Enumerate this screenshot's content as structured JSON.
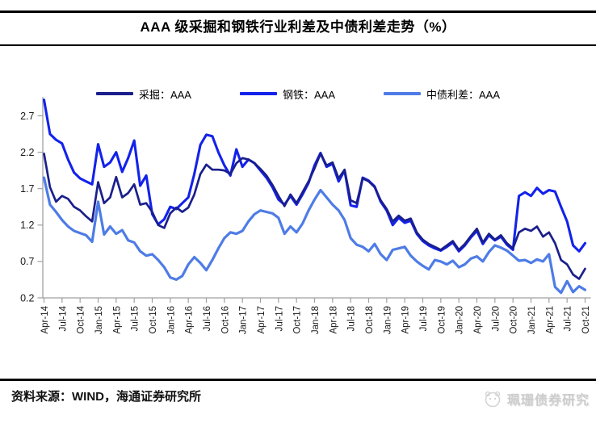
{
  "title": "AAA 级采掘和钢铁行业利差及中债利差走势（%）",
  "source_note": "资料来源：WIND，海通证券研究所",
  "watermark": "珮珊债券研究",
  "colors": {
    "mining": "#1A1F8C",
    "steel": "#1322EB",
    "chinabond": "#4E7CE6",
    "axis": "#A0A0A0",
    "tick_label": "#1a1a1a",
    "watermark": "#CDCDCD"
  },
  "legend": {
    "items": [
      {
        "label": "采掘：AAA",
        "series": "mining"
      },
      {
        "label": "钢铁：AAA",
        "series": "steel"
      },
      {
        "label": "中债利差：AAA",
        "series": "chinabond"
      }
    ]
  },
  "chart_data": {
    "type": "line",
    "title": "AAA 级采掘和钢铁行业利差及中债利差走势（%）",
    "x_unit": "month",
    "x_start": "Apr-14",
    "x_end": "Oct-21",
    "x_tick_labels": [
      "Apr-14",
      "Jul-14",
      "Oct-14",
      "Jan-15",
      "Apr-15",
      "Jul-15",
      "Oct-15",
      "Jan-16",
      "Apr-16",
      "Jul-16",
      "Oct-16",
      "Jan-17",
      "Apr-17",
      "Jul-17",
      "Oct-17",
      "Jan-18",
      "Apr-18",
      "Jul-18",
      "Oct-18",
      "Jan-19",
      "Apr-19",
      "Jul-19",
      "Oct-19",
      "Jan-20",
      "Apr-20",
      "Jul-20",
      "Oct-20",
      "Jan-21",
      "Apr-21",
      "Jul-21",
      "Oct-21"
    ],
    "months_per_tick": 3,
    "y_ticks": [
      0.2,
      0.7,
      1.2,
      1.7,
      2.2,
      2.7
    ],
    "ylim": [
      0.2,
      2.96
    ],
    "ylabel": "",
    "grid": false,
    "legend_position": "top",
    "series": [
      {
        "name": "钢铁：AAA",
        "key": "steel",
        "values": [
          2.92,
          2.45,
          2.37,
          2.32,
          2.1,
          1.92,
          1.84,
          1.8,
          1.76,
          2.31,
          2.0,
          2.06,
          2.2,
          1.93,
          2.12,
          2.36,
          1.74,
          1.88,
          1.35,
          1.21,
          1.28,
          1.45,
          1.42,
          1.5,
          1.58,
          1.9,
          2.3,
          2.44,
          2.42,
          2.2,
          2.02,
          1.88,
          2.24,
          2.0,
          2.1,
          2.05,
          1.95,
          1.85,
          1.72,
          1.55,
          1.48,
          1.6,
          1.48,
          1.62,
          1.78,
          2.02,
          2.19,
          2.0,
          2.04,
          1.8,
          1.95,
          1.47,
          1.45,
          1.85,
          1.81,
          1.73,
          1.52,
          1.4,
          1.2,
          1.3,
          1.23,
          1.26,
          1.08,
          0.98,
          0.92,
          0.88,
          0.85,
          0.9,
          0.96,
          0.84,
          0.92,
          1.03,
          1.12,
          0.94,
          1.06,
          0.99,
          1.04,
          0.93,
          0.86,
          1.6,
          1.65,
          1.6,
          1.71,
          1.63,
          1.68,
          1.66,
          1.45,
          1.25,
          0.92,
          0.84,
          0.95
        ]
      },
      {
        "name": "采掘：AAA",
        "key": "mining",
        "values": [
          2.18,
          1.72,
          1.52,
          1.6,
          1.56,
          1.45,
          1.4,
          1.32,
          1.25,
          1.79,
          1.5,
          1.58,
          1.86,
          1.58,
          1.64,
          1.76,
          1.48,
          1.5,
          1.38,
          1.2,
          1.16,
          1.36,
          1.44,
          1.38,
          1.44,
          1.62,
          1.9,
          2.03,
          1.96,
          1.96,
          1.95,
          1.9,
          2.05,
          2.12,
          2.1,
          2.05,
          1.97,
          1.88,
          1.75,
          1.6,
          1.46,
          1.62,
          1.5,
          1.65,
          1.8,
          1.98,
          2.18,
          2.02,
          2.06,
          1.84,
          1.96,
          1.54,
          1.5,
          1.84,
          1.8,
          1.72,
          1.54,
          1.42,
          1.25,
          1.33,
          1.26,
          1.29,
          1.1,
          1.0,
          0.94,
          0.9,
          0.86,
          0.92,
          0.98,
          0.86,
          0.94,
          1.05,
          1.15,
          0.96,
          1.08,
          1.0,
          1.06,
          0.95,
          0.88,
          1.1,
          1.15,
          1.12,
          1.18,
          1.04,
          1.1,
          0.95,
          0.72,
          0.66,
          0.52,
          0.46,
          0.6
        ]
      },
      {
        "name": "中债利差：AAA",
        "key": "chinabond",
        "values": [
          1.85,
          1.48,
          1.38,
          1.27,
          1.18,
          1.12,
          1.09,
          1.06,
          0.97,
          1.52,
          1.07,
          1.18,
          1.08,
          1.13,
          0.99,
          0.96,
          0.84,
          0.78,
          0.8,
          0.72,
          0.62,
          0.48,
          0.45,
          0.5,
          0.66,
          0.76,
          0.68,
          0.58,
          0.72,
          0.88,
          1.02,
          1.1,
          1.08,
          1.12,
          1.25,
          1.35,
          1.4,
          1.38,
          1.36,
          1.3,
          1.08,
          1.18,
          1.1,
          1.22,
          1.4,
          1.55,
          1.68,
          1.58,
          1.48,
          1.4,
          1.27,
          1.02,
          0.93,
          0.9,
          0.84,
          0.94,
          0.8,
          0.72,
          0.86,
          0.88,
          0.9,
          0.78,
          0.7,
          0.64,
          0.59,
          0.72,
          0.7,
          0.66,
          0.71,
          0.62,
          0.66,
          0.74,
          0.77,
          0.7,
          0.83,
          0.92,
          0.89,
          0.85,
          0.78,
          0.71,
          0.72,
          0.68,
          0.73,
          0.7,
          0.8,
          0.35,
          0.27,
          0.43,
          0.28,
          0.36,
          0.31
        ]
      }
    ]
  }
}
